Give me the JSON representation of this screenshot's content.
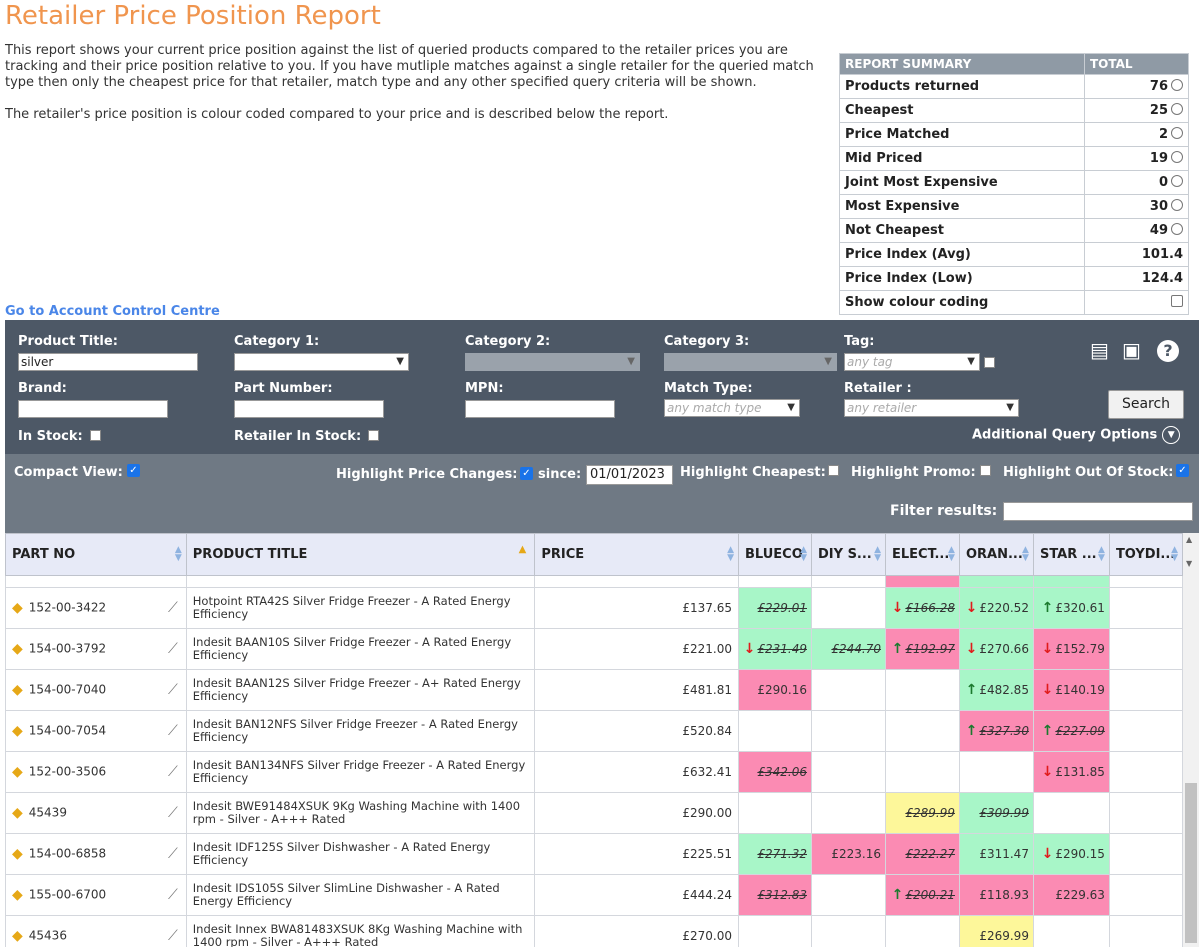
{
  "page": {
    "title": "Retailer Price Position Report",
    "intro_1": "This report shows your current price position against the list of queried products compared to the retailer prices you are tracking and their price position relative to you. If you have mutliple matches against a single retailer for the queried match type then only the cheapest price for that retailer, match type and any other specified query criteria will be shown.",
    "intro_2": "The retailer's price position is colour coded compared to your price and is described below the report.",
    "account_link": "Go to Account Control Centre"
  },
  "summary": {
    "header_label": "REPORT SUMMARY",
    "header_total": "TOTAL",
    "rows": [
      {
        "label": "Products returned",
        "value": "76",
        "radio": true
      },
      {
        "label": "Cheapest",
        "value": "25",
        "radio": true
      },
      {
        "label": "Price Matched",
        "value": "2",
        "radio": true
      },
      {
        "label": "Mid Priced",
        "value": "19",
        "radio": true
      },
      {
        "label": "Joint Most Expensive",
        "value": "0",
        "radio": true
      },
      {
        "label": "Most Expensive",
        "value": "30",
        "radio": true
      },
      {
        "label": "Not Cheapest",
        "value": "49",
        "radio": true
      },
      {
        "label": "Price Index (Avg)",
        "value": "101.4",
        "radio": false
      },
      {
        "label": "Price Index (Low)",
        "value": "124.4",
        "radio": false
      },
      {
        "label": "Show colour coding",
        "value": "",
        "checkbox": true
      }
    ]
  },
  "filters": {
    "product_title_label": "Product Title:",
    "product_title_value": "silver",
    "category1_label": "Category 1:",
    "category2_label": "Category 2:",
    "category3_label": "Category 3:",
    "tag_label": "Tag:",
    "tag_placeholder": "any tag",
    "brand_label": "Brand:",
    "part_number_label": "Part Number:",
    "mpn_label": "MPN:",
    "match_type_label": "Match Type:",
    "match_type_placeholder": "any match type",
    "retailer_label": "Retailer :",
    "retailer_placeholder": "any retailer",
    "search_button": "Search",
    "in_stock_label": "In Stock:",
    "retailer_in_stock_label": "Retailer In Stock:",
    "additional_options": "Additional Query Options"
  },
  "options": {
    "compact_view": "Compact View:",
    "highlight_price_changes": "Highlight Price Changes:",
    "since_label": "since:",
    "since_date": "01/01/2023",
    "highlight_cheapest": "Highlight Cheapest:",
    "highlight_promo": "Highlight Promo:",
    "highlight_out_of_stock": "Highlight Out Of Stock:",
    "filter_results": "Filter results:"
  },
  "grid": {
    "columns": [
      "PART NO",
      "PRODUCT TITLE",
      "PRICE",
      "BLUECO",
      "DIY S...",
      "ELECT...",
      "ORAN...",
      "STAR ...",
      "TOYDI..."
    ],
    "rows": [
      {
        "part": "152-00-3422",
        "title": "Hotpoint RTA42S Silver Fridge Freezer - A Rated Energy Efficiency",
        "price": "£137.65",
        "cells": [
          {
            "v": "£229.01",
            "c": "green",
            "s": true
          },
          {
            "v": ""
          },
          {
            "v": "£166.28",
            "c": "green",
            "s": true,
            "a": "down"
          },
          {
            "v": "£220.52",
            "c": "green",
            "a": "down"
          },
          {
            "v": "£320.61",
            "c": "green",
            "a": "up"
          },
          {
            "v": ""
          }
        ]
      },
      {
        "part": "154-00-3792",
        "title": "Indesit BAAN10S Silver Fridge Freezer - A Rated Energy Efficiency",
        "price": "£221.00",
        "cells": [
          {
            "v": "£231.49",
            "c": "green",
            "s": true,
            "a": "down"
          },
          {
            "v": "£244.70",
            "c": "green",
            "s": true
          },
          {
            "v": "£192.97",
            "c": "pink",
            "s": true,
            "a": "up"
          },
          {
            "v": "£270.66",
            "c": "green",
            "a": "down"
          },
          {
            "v": "£152.79",
            "c": "pink",
            "a": "down"
          },
          {
            "v": ""
          }
        ]
      },
      {
        "part": "154-00-7040",
        "title": "Indesit BAAN12S Silver Fridge Freezer - A+ Rated Energy Efficiency",
        "price": "£481.81",
        "cells": [
          {
            "v": "£290.16",
            "c": "pink"
          },
          {
            "v": ""
          },
          {
            "v": ""
          },
          {
            "v": "£482.85",
            "c": "green",
            "a": "up"
          },
          {
            "v": "£140.19",
            "c": "pink",
            "a": "down"
          },
          {
            "v": ""
          }
        ]
      },
      {
        "part": "154-00-7054",
        "title": "Indesit BAN12NFS Silver Fridge Freezer - A Rated Energy Efficiency",
        "price": "£520.84",
        "cells": [
          {
            "v": ""
          },
          {
            "v": ""
          },
          {
            "v": ""
          },
          {
            "v": "£327.30",
            "c": "pink",
            "s": true,
            "a": "up"
          },
          {
            "v": "£227.09",
            "c": "pink",
            "s": true,
            "a": "up"
          },
          {
            "v": ""
          }
        ]
      },
      {
        "part": "152-00-3506",
        "title": "Indesit BAN134NFS Silver Fridge Freezer - A Rated Energy Efficiency",
        "price": "£632.41",
        "cells": [
          {
            "v": "£342.06",
            "c": "pink",
            "s": true
          },
          {
            "v": ""
          },
          {
            "v": ""
          },
          {
            "v": ""
          },
          {
            "v": "£131.85",
            "c": "pink",
            "a": "down"
          },
          {
            "v": ""
          }
        ]
      },
      {
        "part": "45439",
        "title": "Indesit BWE91484XSUK 9Kg Washing Machine with 1400 rpm - Silver - A+++ Rated",
        "price": "£290.00",
        "cells": [
          {
            "v": ""
          },
          {
            "v": ""
          },
          {
            "v": "£289.99",
            "c": "yellow",
            "s": true
          },
          {
            "v": "£309.99",
            "c": "green",
            "s": true
          },
          {
            "v": ""
          },
          {
            "v": ""
          }
        ]
      },
      {
        "part": "154-00-6858",
        "title": "Indesit IDF125S Silver Dishwasher - A Rated Energy Efficiency",
        "price": "£225.51",
        "cells": [
          {
            "v": "£271.32",
            "c": "green",
            "s": true
          },
          {
            "v": "£223.16",
            "c": "pink"
          },
          {
            "v": "£222.27",
            "c": "pink",
            "s": true
          },
          {
            "v": "£311.47",
            "c": "green"
          },
          {
            "v": "£290.15",
            "c": "green",
            "a": "down"
          },
          {
            "v": ""
          }
        ]
      },
      {
        "part": "155-00-6700",
        "title": "Indesit IDS105S Silver SlimLine Dishwasher - A Rated Energy Efficiency",
        "price": "£444.24",
        "cells": [
          {
            "v": "£312.83",
            "c": "pink",
            "s": true
          },
          {
            "v": ""
          },
          {
            "v": "£200.21",
            "c": "pink",
            "s": true,
            "a": "up"
          },
          {
            "v": "£118.93",
            "c": "pink"
          },
          {
            "v": "£229.63",
            "c": "pink"
          },
          {
            "v": ""
          }
        ]
      },
      {
        "part": "45436",
        "title": "Indesit Innex BWA81483XSUK 8Kg Washing Machine with 1400 rpm - Silver - A+++ Rated",
        "price": "£270.00",
        "cells": [
          {
            "v": ""
          },
          {
            "v": ""
          },
          {
            "v": ""
          },
          {
            "v": "£269.99",
            "c": "yellow"
          },
          {
            "v": ""
          },
          {
            "v": ""
          }
        ]
      }
    ]
  },
  "icons": {
    "tag": "price-tag-icon",
    "trend": "trend-chart-icon",
    "export": "spreadsheet-icon",
    "save": "save-icon",
    "help": "help-icon"
  }
}
